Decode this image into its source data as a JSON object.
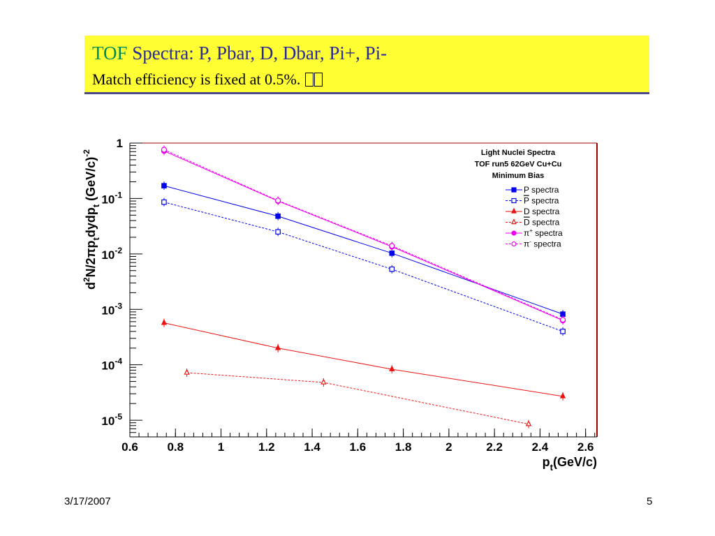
{
  "slide": {
    "title_accent": "TOF",
    "title_rest": " Spectra: P, Pbar, D, Dbar, Pi+, Pi-",
    "subtitle": "Match efficiency is fixed at 0.5%. ",
    "date": "3/17/2007",
    "page": "5"
  },
  "colors": {
    "title_bg": "#ffff33",
    "title_text": "#2a2a99",
    "accent": "#008a5a",
    "blue": "#0000ee",
    "red": "#ee1111",
    "magenta": "#ee00ee",
    "frame_red": "#990000"
  },
  "chart_data": {
    "type": "scatter",
    "xlabel_main": "p",
    "xlabel_sub": "t",
    "xlabel_tail": "(GeV/c)",
    "ylabel_parts": [
      "d",
      "2",
      "N/2",
      "π",
      "p",
      "t",
      "dydp",
      "t",
      " (GeV/c)",
      "-2"
    ],
    "xlim": [
      0.6,
      2.65
    ],
    "ylim": [
      5e-06,
      1
    ],
    "yscale": "log",
    "xticks": [
      "0.6",
      "0.8",
      "1",
      "1.2",
      "1.4",
      "1.6",
      "1.8",
      "2",
      "2.2",
      "2.4",
      "2.6"
    ],
    "xtick_values": [
      0.6,
      0.8,
      1.0,
      1.2,
      1.4,
      1.6,
      1.8,
      2.0,
      2.2,
      2.4,
      2.6
    ],
    "yticks": [
      {
        "value": 1,
        "base": "1",
        "exp": ""
      },
      {
        "value": 0.1,
        "base": "10",
        "exp": "-1"
      },
      {
        "value": 0.01,
        "base": "10",
        "exp": "-2"
      },
      {
        "value": 0.001,
        "base": "10",
        "exp": "-3"
      },
      {
        "value": 0.0001,
        "base": "10",
        "exp": "-4"
      },
      {
        "value": 1e-05,
        "base": "10",
        "exp": "-5"
      }
    ],
    "legend_header": [
      "Light Nuclei  Spectra",
      "TOF run5 62GeV Cu+Cu",
      "Minimum Bias"
    ],
    "legend_position": "top-right",
    "series": [
      {
        "name": "P spectra",
        "legend_main": "P",
        "legend_over": false,
        "legend_sup": "",
        "legend_tail": " spectra",
        "color": "#0000ee",
        "marker": "square-filled",
        "dashed": false,
        "x": [
          0.75,
          1.25,
          1.75,
          2.5
        ],
        "y": [
          0.17,
          0.048,
          0.0103,
          0.00082
        ]
      },
      {
        "name": "P spectra (bar)",
        "legend_main": "P",
        "legend_over": true,
        "legend_sup": "",
        "legend_tail": " spectra",
        "color": "#0000ee",
        "marker": "square-open",
        "dashed": true,
        "x": [
          0.75,
          1.25,
          1.75,
          2.5
        ],
        "y": [
          0.086,
          0.025,
          0.0053,
          0.0004
        ]
      },
      {
        "name": "D spectra",
        "legend_main": "D",
        "legend_over": false,
        "legend_sup": "",
        "legend_tail": " spectra",
        "color": "#ee1111",
        "marker": "triangle-filled",
        "dashed": false,
        "x": [
          0.75,
          1.25,
          1.75,
          2.5
        ],
        "y": [
          0.00057,
          0.0002,
          8.3e-05,
          2.7e-05
        ]
      },
      {
        "name": "D spectra (bar)",
        "legend_main": "D",
        "legend_over": true,
        "legend_sup": "",
        "legend_tail": " spectra",
        "color": "#ee1111",
        "marker": "triangle-open",
        "dashed": true,
        "x": [
          0.85,
          1.45,
          2.35
        ],
        "y": [
          7.2e-05,
          4.8e-05,
          8.5e-06
        ]
      },
      {
        "name": "π+ spectra",
        "legend_main": "π",
        "legend_over": false,
        "legend_sup": "+",
        "legend_tail": " spectra",
        "color": "#ee00ee",
        "marker": "circle-filled",
        "dashed": false,
        "x": [
          0.75,
          1.25,
          1.75,
          2.5
        ],
        "y": [
          0.72,
          0.09,
          0.0135,
          0.00063
        ]
      },
      {
        "name": "π- spectra",
        "legend_main": "π",
        "legend_over": false,
        "legend_sup": "-",
        "legend_tail": " spectra",
        "color": "#ee00ee",
        "marker": "circle-open",
        "dashed": true,
        "x": [
          0.75,
          1.25,
          1.75,
          2.5
        ],
        "y": [
          0.76,
          0.092,
          0.014,
          0.00065
        ]
      }
    ]
  }
}
